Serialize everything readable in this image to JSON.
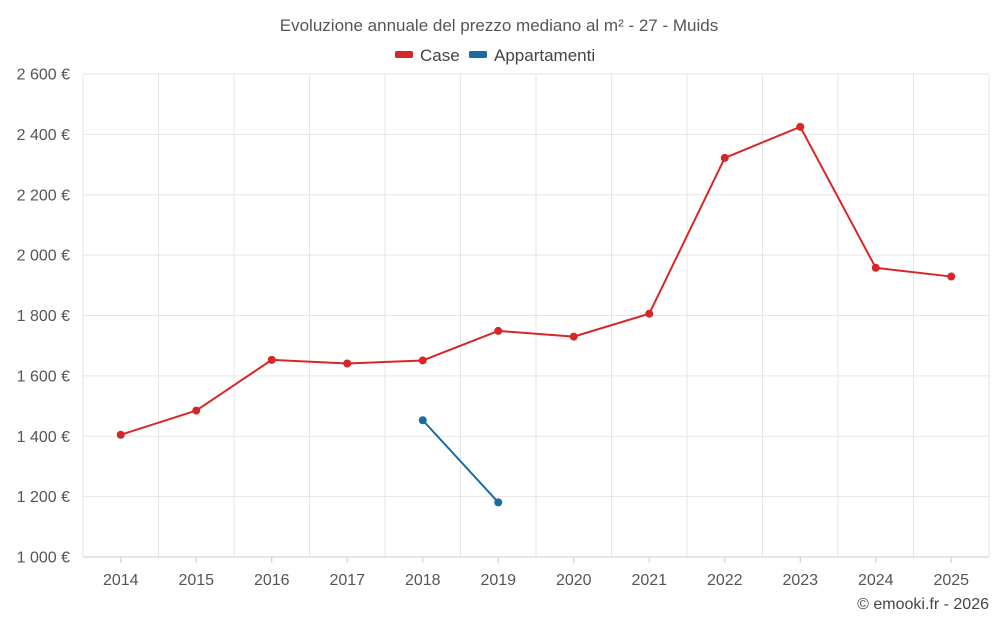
{
  "chart_data": {
    "type": "line",
    "title": "Evoluzione annuale del prezzo mediano al m² - 27 - Muids",
    "categories": [
      "2014",
      "2015",
      "2016",
      "2017",
      "2018",
      "2019",
      "2020",
      "2021",
      "2022",
      "2023",
      "2024",
      "2025"
    ],
    "ylim": [
      1000,
      2600
    ],
    "yticks": [
      1000,
      1200,
      1400,
      1600,
      1800,
      2000,
      2200,
      2400,
      2600
    ],
    "ytick_labels": [
      "1 000 €",
      "1 200 €",
      "1 400 €",
      "1 600 €",
      "1 800 €",
      "2 000 €",
      "2 200 €",
      "2 400 €",
      "2 600 €"
    ],
    "grid": true,
    "legend_position": "top-center",
    "series": [
      {
        "name": "Case",
        "color": "#d62728",
        "values": [
          1405,
          1485,
          1653,
          1641,
          1651,
          1749,
          1730,
          1806,
          2322,
          2425,
          1958,
          1929
        ]
      },
      {
        "name": "Appartamenti",
        "color": "#1a6aa5",
        "values": [
          null,
          null,
          null,
          null,
          1453,
          1181,
          null,
          null,
          null,
          null,
          null,
          null
        ]
      }
    ]
  },
  "credit": "© emooki.fr - 2026"
}
